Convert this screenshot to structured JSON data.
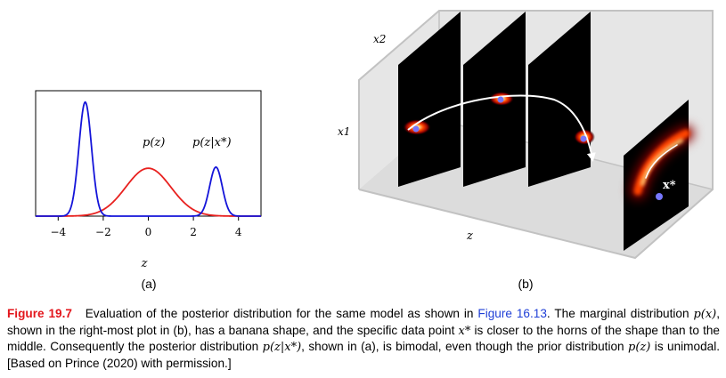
{
  "panel_a": {
    "label": "(a)",
    "chart_data": {
      "type": "line",
      "xlabel": "z",
      "ylabel": "",
      "xlim": [
        -5,
        5
      ],
      "ylim": [
        0,
        1.1
      ],
      "xticks": [
        -4,
        -2,
        0,
        2,
        4
      ],
      "xtick_labels": [
        "−4",
        "−2",
        "0",
        "2",
        "4"
      ],
      "grid": false,
      "series": [
        {
          "name": "p(z)",
          "color": "#e8211f",
          "mixture": [
            {
              "mean": 0,
              "sd": 1.0,
              "weight": 0.42
            }
          ]
        },
        {
          "name": "p(z|x*)",
          "color": "#1414d9",
          "mixture": [
            {
              "mean": -2.8,
              "sd": 0.28,
              "weight": 1.0
            },
            {
              "mean": 3.0,
              "sd": 0.28,
              "weight": 0.43
            }
          ]
        }
      ],
      "annotations": [
        "p(z)",
        "p(z|x*)"
      ]
    }
  },
  "panel_b": {
    "label": "(b)",
    "axis_x1": "x1",
    "axis_x2": "x2",
    "axis_z": "z",
    "point_label": "x*",
    "point_color": "#7777ff",
    "heat_colors": [
      "#000000",
      "#8b0000",
      "#ff4500",
      "#ffd27a",
      "#ffffff"
    ]
  },
  "caption": {
    "figure_label": "Figure 19.7",
    "t1": "Evaluation of the posterior distribution for the same model as shown in",
    "ref": "Figure 16.13",
    "t2": ". The marginal distribution",
    "m1": "p(x)",
    "t3": ", shown in the right-most plot in (b), has a banana shape, and the specific data point",
    "m2": "x*",
    "t4": "is closer to the horns of the shape than to the middle. Consequently the posterior distribution",
    "m3": "p(z|x*)",
    "t5": ", shown in (a), is bimodal, even though the prior distribution",
    "m4": "p(z)",
    "t6": "is unimodal. [Based on Prince (2020) with permission.]"
  }
}
